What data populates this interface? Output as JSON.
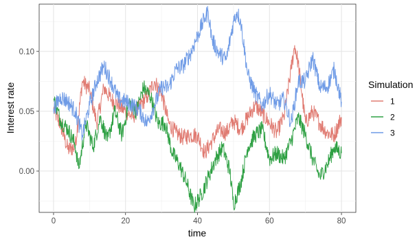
{
  "chart_data": {
    "type": "line",
    "xlabel": "time",
    "ylabel": "Interest rate",
    "xlim": [
      -4,
      84
    ],
    "ylim": [
      -0.0345,
      0.1395
    ],
    "x_ticks": [
      0,
      20,
      40,
      60,
      80
    ],
    "x_tick_labels": [
      "0",
      "20",
      "40",
      "60",
      "80"
    ],
    "y_ticks": [
      0.0,
      0.05,
      0.1
    ],
    "y_tick_labels": [
      "0.00",
      "0.05",
      "0.10"
    ],
    "grid": true,
    "legend": {
      "title": "Simulation",
      "placement": "right"
    },
    "series": [
      {
        "name": "1",
        "color": "#E07B72",
        "points": [
          [
            0,
            0.052
          ],
          [
            2,
            0.038
          ],
          [
            4,
            0.018
          ],
          [
            6,
            0.02
          ],
          [
            8,
            0.075
          ],
          [
            10,
            0.068
          ],
          [
            12,
            0.04
          ],
          [
            14,
            0.07
          ],
          [
            16,
            0.06
          ],
          [
            18,
            0.055
          ],
          [
            20,
            0.05
          ],
          [
            22,
            0.045
          ],
          [
            24,
            0.055
          ],
          [
            26,
            0.062
          ],
          [
            28,
            0.075
          ],
          [
            30,
            0.065
          ],
          [
            32,
            0.04
          ],
          [
            34,
            0.032
          ],
          [
            36,
            0.028
          ],
          [
            38,
            0.03
          ],
          [
            40,
            0.03
          ],
          [
            42,
            0.015
          ],
          [
            44,
            0.025
          ],
          [
            46,
            0.035
          ],
          [
            48,
            0.032
          ],
          [
            50,
            0.042
          ],
          [
            52,
            0.035
          ],
          [
            54,
            0.045
          ],
          [
            56,
            0.055
          ],
          [
            58,
            0.048
          ],
          [
            60,
            0.04
          ],
          [
            62,
            0.032
          ],
          [
            64,
            0.045
          ],
          [
            66,
            0.085
          ],
          [
            67,
            0.105
          ],
          [
            68,
            0.09
          ],
          [
            70,
            0.04
          ],
          [
            72,
            0.05
          ],
          [
            74,
            0.04
          ],
          [
            76,
            0.032
          ],
          [
            78,
            0.03
          ],
          [
            80,
            0.045
          ]
        ]
      },
      {
        "name": "2",
        "color": "#2EA043",
        "points": [
          [
            0,
            0.06
          ],
          [
            2,
            0.042
          ],
          [
            4,
            0.035
          ],
          [
            6,
            0.022
          ],
          [
            7,
            0.002
          ],
          [
            9,
            0.04
          ],
          [
            11,
            0.02
          ],
          [
            13,
            0.045
          ],
          [
            15,
            0.025
          ],
          [
            17,
            0.05
          ],
          [
            19,
            0.03
          ],
          [
            21,
            0.058
          ],
          [
            23,
            0.05
          ],
          [
            25,
            0.07
          ],
          [
            27,
            0.062
          ],
          [
            29,
            0.04
          ],
          [
            31,
            0.04
          ],
          [
            33,
            0.015
          ],
          [
            35,
            0.005
          ],
          [
            37,
            -0.01
          ],
          [
            39,
            -0.03
          ],
          [
            41,
            -0.02
          ],
          [
            43,
            -0.005
          ],
          [
            45,
            0.01
          ],
          [
            47,
            0.02
          ],
          [
            49,
            0.0
          ],
          [
            50,
            -0.028
          ],
          [
            52,
            -0.01
          ],
          [
            54,
            0.02
          ],
          [
            56,
            0.03
          ],
          [
            58,
            0.035
          ],
          [
            60,
            0.01
          ],
          [
            62,
            0.015
          ],
          [
            64,
            0.01
          ],
          [
            66,
            0.025
          ],
          [
            68,
            0.045
          ],
          [
            70,
            0.03
          ],
          [
            72,
            0.01
          ],
          [
            74,
            -0.005
          ],
          [
            76,
            0.005
          ],
          [
            78,
            0.02
          ],
          [
            80,
            0.015
          ]
        ]
      },
      {
        "name": "3",
        "color": "#6F9BE6",
        "points": [
          [
            0,
            0.052
          ],
          [
            2,
            0.062
          ],
          [
            4,
            0.058
          ],
          [
            6,
            0.05
          ],
          [
            8,
            0.03
          ],
          [
            10,
            0.055
          ],
          [
            12,
            0.075
          ],
          [
            14,
            0.088
          ],
          [
            16,
            0.075
          ],
          [
            18,
            0.06
          ],
          [
            20,
            0.058
          ],
          [
            22,
            0.055
          ],
          [
            24,
            0.05
          ],
          [
            26,
            0.04
          ],
          [
            28,
            0.055
          ],
          [
            30,
            0.07
          ],
          [
            32,
            0.07
          ],
          [
            34,
            0.085
          ],
          [
            36,
            0.088
          ],
          [
            38,
            0.098
          ],
          [
            40,
            0.113
          ],
          [
            42,
            0.128
          ],
          [
            43,
            0.133
          ],
          [
            44,
            0.11
          ],
          [
            46,
            0.098
          ],
          [
            48,
            0.093
          ],
          [
            50,
            0.125
          ],
          [
            51,
            0.133
          ],
          [
            52,
            0.125
          ],
          [
            54,
            0.08
          ],
          [
            56,
            0.065
          ],
          [
            58,
            0.055
          ],
          [
            60,
            0.065
          ],
          [
            62,
            0.055
          ],
          [
            64,
            0.06
          ],
          [
            66,
            0.04
          ],
          [
            68,
            0.075
          ],
          [
            70,
            0.075
          ],
          [
            72,
            0.095
          ],
          [
            74,
            0.07
          ],
          [
            76,
            0.07
          ],
          [
            78,
            0.085
          ],
          [
            80,
            0.058
          ]
        ]
      }
    ]
  }
}
